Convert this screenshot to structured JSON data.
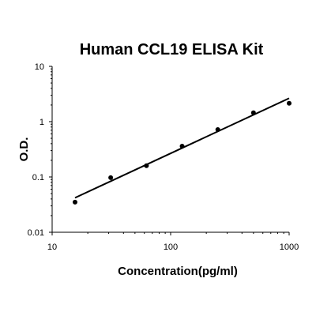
{
  "chart_data": {
    "type": "scatter",
    "title": "Human CCL19 ELISA Kit",
    "xlabel": "Concentration(pg/ml)",
    "ylabel": "O.D.",
    "x_scale": "log",
    "y_scale": "log",
    "xlim": [
      10,
      1000
    ],
    "ylim": [
      0.01,
      10
    ],
    "x_ticks": [
      "10",
      "100",
      "1000"
    ],
    "y_ticks": [
      "10",
      "1",
      "0.1",
      "0.01"
    ],
    "grid": false,
    "series": [
      {
        "x": [
          15.6,
          31.2,
          62.5,
          125,
          250,
          500,
          1000
        ],
        "y": [
          0.035,
          0.097,
          0.16,
          0.36,
          0.72,
          1.45,
          2.15
        ]
      }
    ],
    "fit_line": {
      "x": [
        15.6,
        1000
      ],
      "y": [
        0.042,
        2.65
      ]
    }
  }
}
